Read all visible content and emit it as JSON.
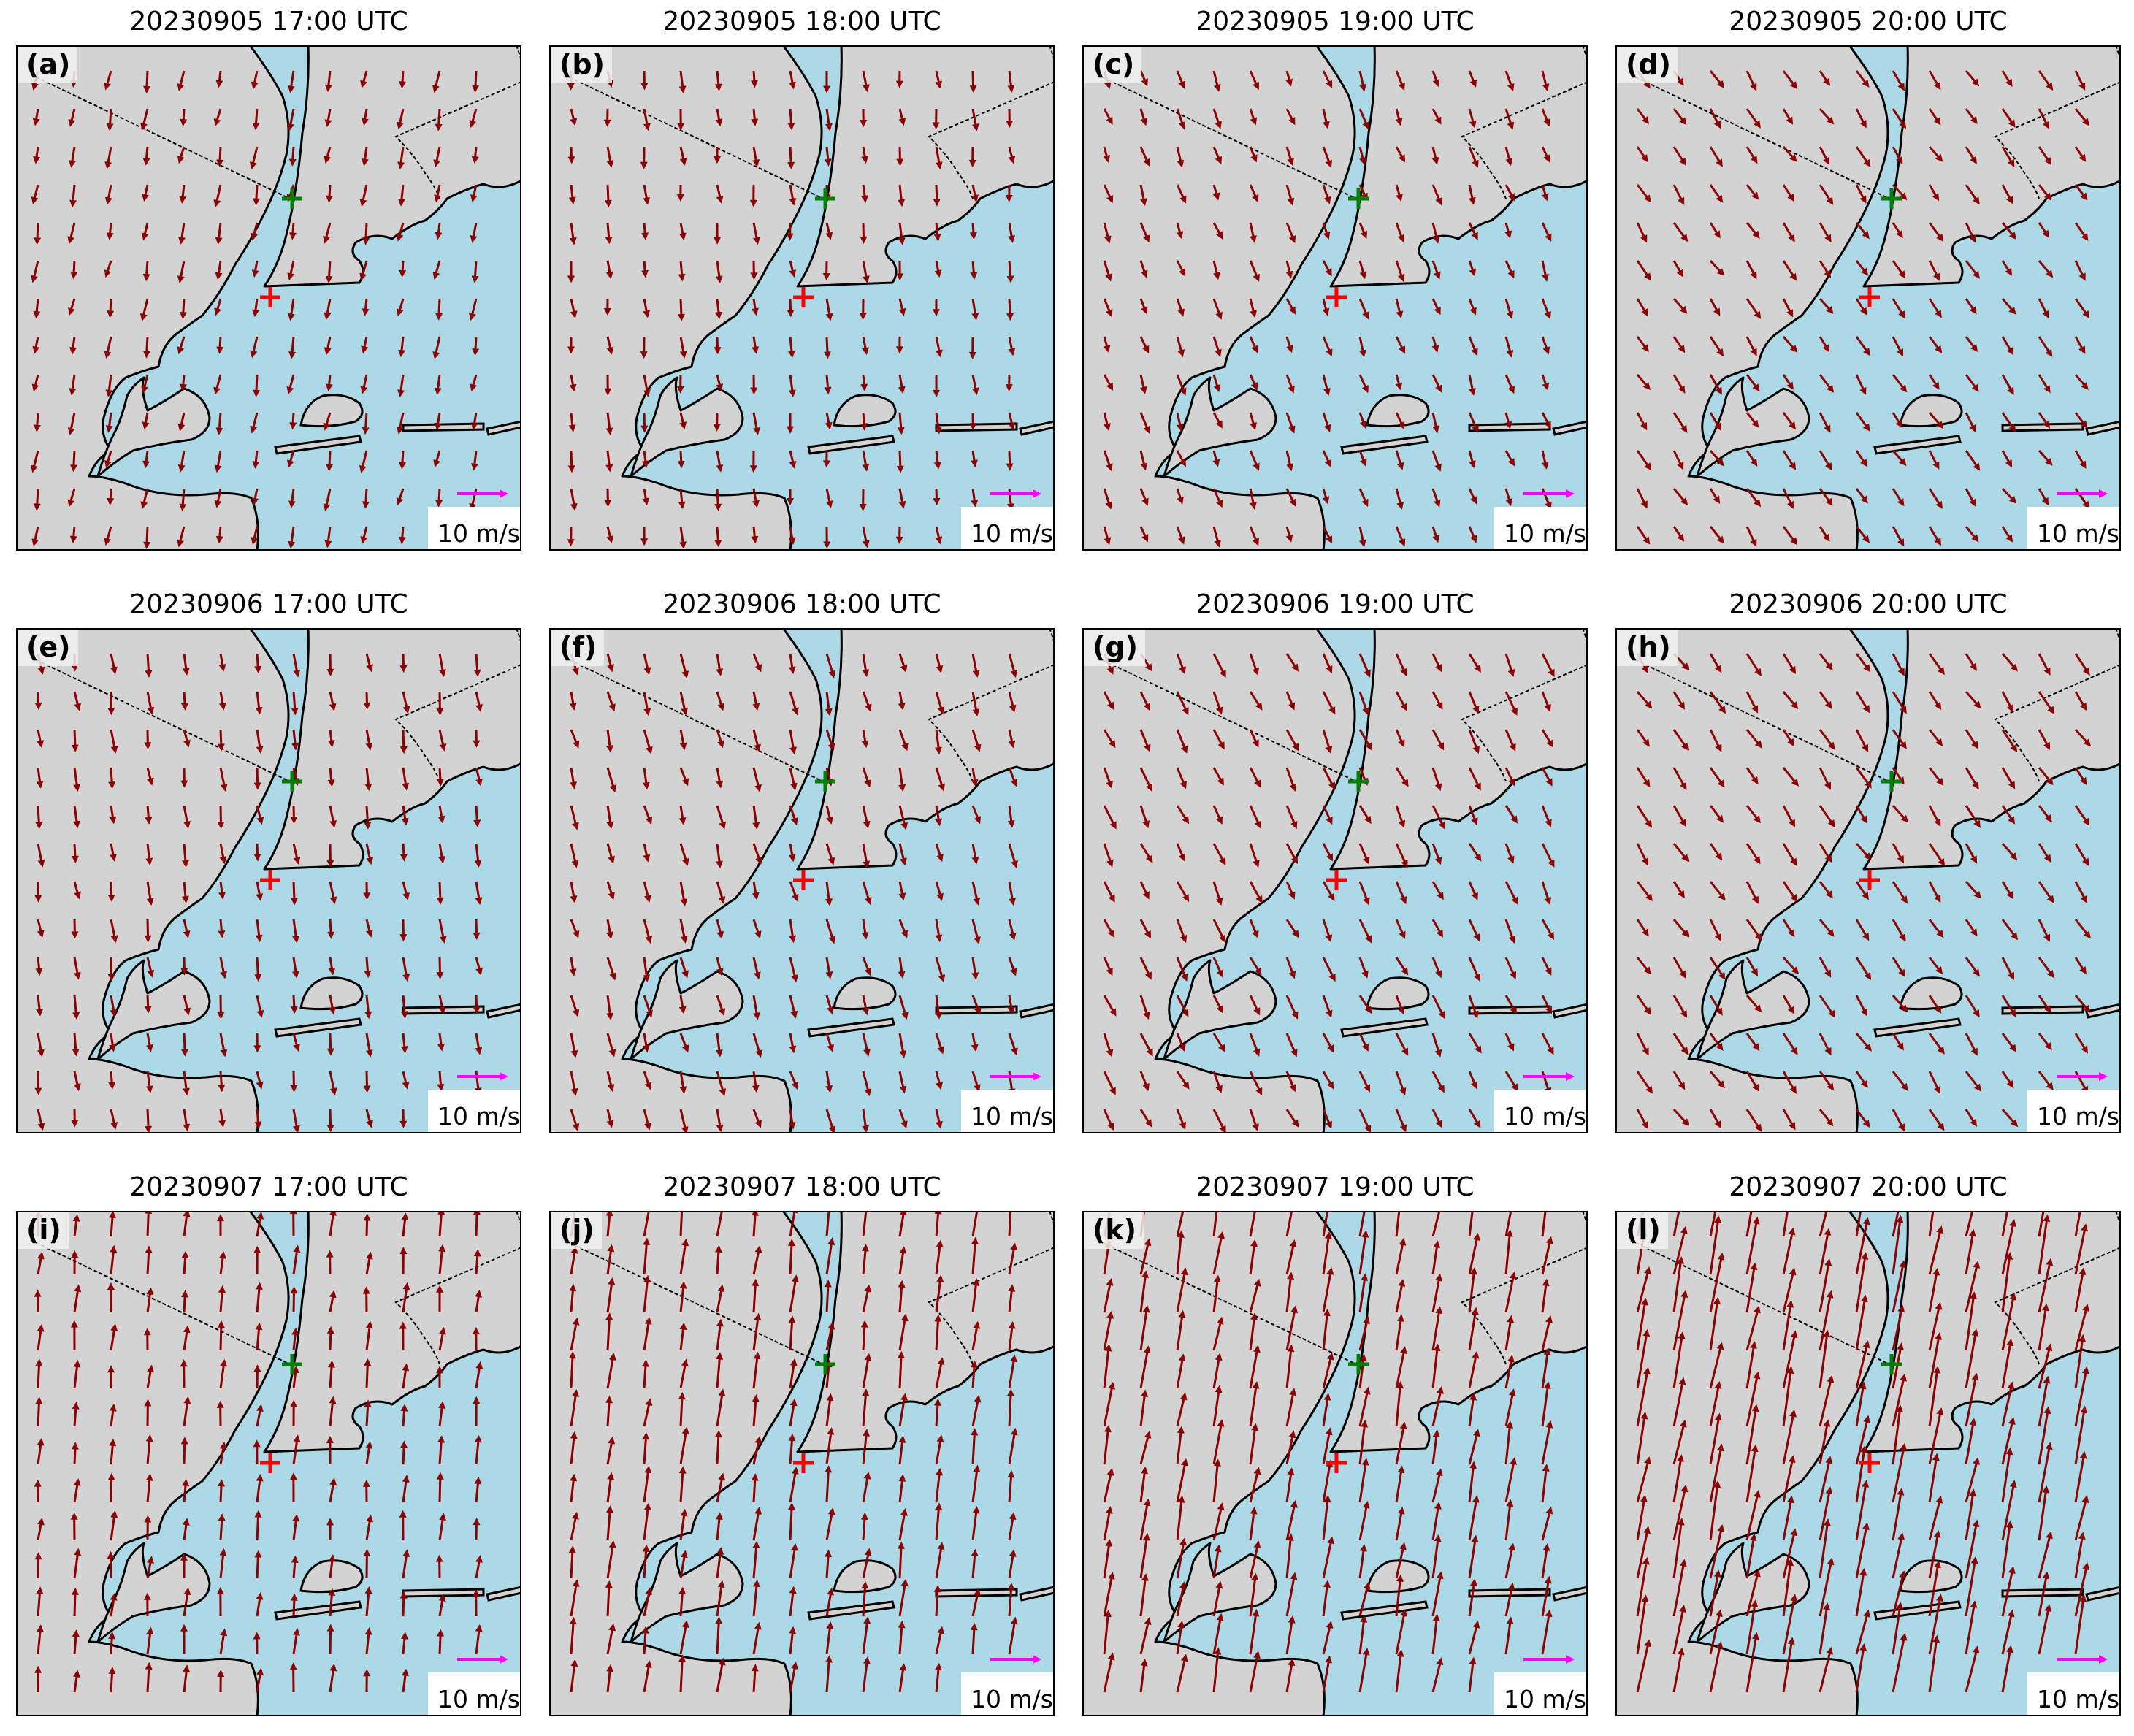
{
  "figure": {
    "panels": [
      {
        "label": "(a)",
        "title": "20230905 17:00 UTC",
        "wind": {
          "u": -0.5,
          "v": -3.0
        }
      },
      {
        "label": "(b)",
        "title": "20230905 18:00 UTC",
        "wind": {
          "u": 0.3,
          "v": -3.0
        }
      },
      {
        "label": "(c)",
        "title": "20230905 19:00 UTC",
        "wind": {
          "u": 1.0,
          "v": -2.8
        }
      },
      {
        "label": "(d)",
        "title": "20230905 20:00 UTC",
        "wind": {
          "u": 1.8,
          "v": -2.7
        }
      },
      {
        "label": "(e)",
        "title": "20230906 17:00 UTC",
        "wind": {
          "u": 0.4,
          "v": -3.2
        }
      },
      {
        "label": "(f)",
        "title": "20230906 18:00 UTC",
        "wind": {
          "u": 0.8,
          "v": -3.3
        }
      },
      {
        "label": "(g)",
        "title": "20230906 19:00 UTC",
        "wind": {
          "u": 1.5,
          "v": -3.2
        }
      },
      {
        "label": "(h)",
        "title": "20230906 20:00 UTC",
        "wind": {
          "u": 2.0,
          "v": -3.0
        }
      },
      {
        "label": "(i)",
        "title": "20230907 17:00 UTC",
        "wind": {
          "u": 0.3,
          "v": 4.0
        }
      },
      {
        "label": "(j)",
        "title": "20230907 18:00 UTC",
        "wind": {
          "u": 0.6,
          "v": 5.0
        }
      },
      {
        "label": "(k)",
        "title": "20230907 19:00 UTC",
        "wind": {
          "u": 1.0,
          "v": 6.0
        }
      },
      {
        "label": "(l)",
        "title": "20230907 20:00 UTC",
        "wind": {
          "u": 1.5,
          "v": 8.0
        }
      }
    ],
    "reference_vector": {
      "label": "10 m/s",
      "speed_ms": 10,
      "color": "#ff00ff"
    },
    "colors": {
      "land": "#d3d3d3",
      "water": "#add8e6",
      "arrows": "#8b0000",
      "coast": "#000000",
      "site_green": "#007f00",
      "site_red": "#ff0000"
    }
  }
}
